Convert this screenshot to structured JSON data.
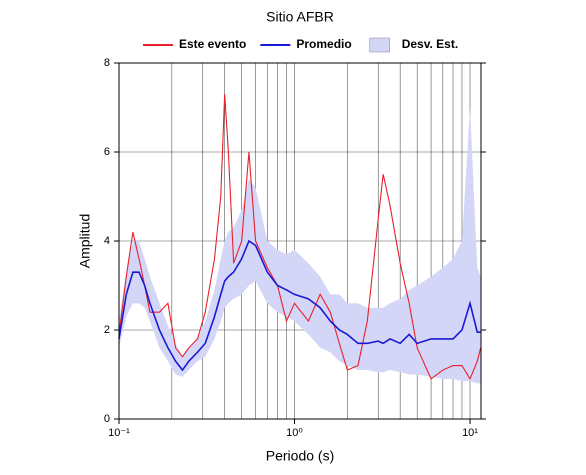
{
  "chart_data": {
    "type": "line",
    "title": "Sitio AFBR",
    "x_label": "Periodo (s)",
    "y_label": "Amplitud",
    "log_x": true,
    "grid": true,
    "legend": "top",
    "xlim": [
      0.1,
      11.55
    ],
    "ylim": [
      0,
      8
    ],
    "xticks": [
      {
        "value": 0.1,
        "label": "10⁻¹"
      },
      {
        "value": 1,
        "label": "10⁰"
      },
      {
        "value": 10,
        "label": "10¹"
      }
    ],
    "yticks": [
      0,
      2,
      4,
      6,
      8
    ],
    "x": [
      0.1,
      0.11,
      0.12,
      0.13,
      0.14,
      0.15,
      0.17,
      0.19,
      0.21,
      0.23,
      0.25,
      0.28,
      0.31,
      0.35,
      0.38,
      0.4,
      0.42,
      0.45,
      0.5,
      0.55,
      0.6,
      0.7,
      0.8,
      0.9,
      1.0,
      1.2,
      1.4,
      1.6,
      1.8,
      2.0,
      2.3,
      2.6,
      3.0,
      3.2,
      3.5,
      4.0,
      4.5,
      5,
      6,
      7,
      8,
      9,
      10,
      11,
      11.5
    ],
    "band": {
      "name": "Desv. Est.",
      "color": "#d4d6f8",
      "lower": [
        1.6,
        2.3,
        2.6,
        2.6,
        2.5,
        2.2,
        1.6,
        1.3,
        1.0,
        0.95,
        1.1,
        1.3,
        1.4,
        1.8,
        2.2,
        2.5,
        2.6,
        2.7,
        2.8,
        3.0,
        3.1,
        2.6,
        2.4,
        2.3,
        2.2,
        1.9,
        1.6,
        1.5,
        1.3,
        1.2,
        1.1,
        1.1,
        1.05,
        1.05,
        1.1,
        1.05,
        1.0,
        1.0,
        0.95,
        0.9,
        0.9,
        0.85,
        0.85,
        0.8,
        0.8
      ],
      "upper": [
        2.2,
        3.3,
        4.0,
        4.0,
        3.6,
        3.2,
        2.6,
        2.1,
        1.7,
        1.4,
        1.6,
        1.8,
        2.2,
        2.9,
        3.6,
        4.0,
        4.2,
        4.3,
        4.7,
        5.4,
        5.2,
        4.0,
        3.8,
        3.7,
        3.8,
        3.5,
        3.2,
        2.8,
        2.8,
        2.6,
        2.6,
        2.5,
        2.5,
        2.5,
        2.6,
        2.7,
        2.9,
        3.0,
        3.2,
        3.4,
        3.6,
        4.0,
        7.0,
        3.4,
        3.2
      ]
    },
    "series": [
      {
        "name": "Este evento",
        "color": "#e8202a",
        "values": [
          1.9,
          3.2,
          4.2,
          3.6,
          3.0,
          2.4,
          2.4,
          2.6,
          1.6,
          1.4,
          1.6,
          1.8,
          2.4,
          3.6,
          5.0,
          7.3,
          6.0,
          3.5,
          4.0,
          6.0,
          4.0,
          3.4,
          3.0,
          2.2,
          2.6,
          2.2,
          2.8,
          2.4,
          1.7,
          1.1,
          1.2,
          2.2,
          4.5,
          5.5,
          4.8,
          3.5,
          2.6,
          1.6,
          0.9,
          1.1,
          1.2,
          1.2,
          0.9,
          1.3,
          1.6
        ]
      },
      {
        "name": "Promedio",
        "color": "#1a1ad6",
        "values": [
          1.8,
          2.8,
          3.3,
          3.3,
          3.0,
          2.6,
          2.0,
          1.6,
          1.3,
          1.1,
          1.3,
          1.5,
          1.7,
          2.3,
          2.8,
          3.1,
          3.2,
          3.3,
          3.6,
          4.0,
          3.9,
          3.3,
          3.0,
          2.9,
          2.8,
          2.7,
          2.5,
          2.2,
          2.0,
          1.9,
          1.7,
          1.7,
          1.75,
          1.7,
          1.8,
          1.7,
          1.9,
          1.7,
          1.8,
          1.8,
          1.8,
          2.0,
          2.6,
          1.95,
          1.95
        ]
      }
    ]
  }
}
